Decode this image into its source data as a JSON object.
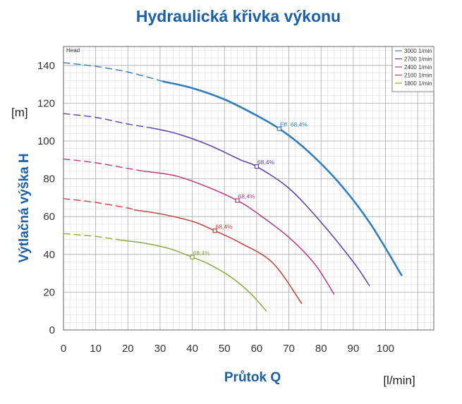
{
  "chart_data": {
    "type": "line",
    "title": "Hydraulická křivka výkonu",
    "xlabel": "Průtok Q",
    "xunit": "[l/min]",
    "ylabel": "Výtlačná výška H",
    "yunit": "[m]",
    "plot_label": "Head",
    "xlim": [
      0,
      115
    ],
    "ylim": [
      0,
      150
    ],
    "x_ticks": [
      0,
      10,
      20,
      30,
      40,
      50,
      60,
      70,
      80,
      90,
      100
    ],
    "y_ticks": [
      0,
      20,
      40,
      60,
      80,
      100,
      120,
      140
    ],
    "grid": true,
    "legend_position": "top-right",
    "series": [
      {
        "name": "3000 1/min",
        "color": "#2f7dc0",
        "dashed_points": [
          [
            0,
            141.5
          ],
          [
            10,
            139.5
          ],
          [
            20,
            136.5
          ],
          [
            31,
            131.5
          ]
        ],
        "solid_points": [
          [
            31,
            131.5
          ],
          [
            40,
            128
          ],
          [
            50,
            122
          ],
          [
            60,
            113.5
          ],
          [
            67,
            106.5
          ],
          [
            75,
            96
          ],
          [
            85,
            79
          ],
          [
            95,
            57
          ],
          [
            105,
            29
          ]
        ],
        "efficiency_point": [
          67,
          106.5
        ],
        "efficiency_label": "Eff. 68,4%"
      },
      {
        "name": "2700 1/min",
        "color": "#5b3ea8",
        "dashed_points": [
          [
            0,
            114.5
          ],
          [
            10,
            112.5
          ],
          [
            20,
            109
          ],
          [
            27,
            107
          ]
        ],
        "solid_points": [
          [
            27,
            107
          ],
          [
            35,
            104
          ],
          [
            45,
            98
          ],
          [
            55,
            90
          ],
          [
            60,
            86.5
          ],
          [
            70,
            75
          ],
          [
            80,
            57
          ],
          [
            90,
            36
          ],
          [
            95,
            23.5
          ]
        ],
        "efficiency_point": [
          60,
          86.5
        ],
        "efficiency_label": "68,4%"
      },
      {
        "name": "2400 1/min",
        "color": "#b63a7e",
        "dashed_points": [
          [
            0,
            90.5
          ],
          [
            10,
            88.5
          ],
          [
            20,
            85.5
          ],
          [
            25,
            84
          ]
        ],
        "solid_points": [
          [
            25,
            84
          ],
          [
            35,
            81.5
          ],
          [
            45,
            75.5
          ],
          [
            54,
            68.5
          ],
          [
            60,
            62
          ],
          [
            70,
            49
          ],
          [
            78,
            35
          ],
          [
            84,
            19
          ]
        ],
        "efficiency_point": [
          54,
          68.5
        ],
        "efficiency_label": "68,4%"
      },
      {
        "name": "2100 1/min",
        "color": "#c0413c",
        "dashed_points": [
          [
            0,
            69.5
          ],
          [
            10,
            67.5
          ],
          [
            20,
            64.5
          ],
          [
            22,
            63.5
          ]
        ],
        "solid_points": [
          [
            22,
            63.5
          ],
          [
            30,
            61.5
          ],
          [
            40,
            57.5
          ],
          [
            47,
            52.5
          ],
          [
            55,
            46
          ],
          [
            65,
            35.5
          ],
          [
            74,
            14
          ]
        ],
        "efficiency_point": [
          47,
          52.5
        ],
        "efficiency_label": "68,4%"
      },
      {
        "name": "1800 1/min",
        "color": "#8aaa3c",
        "dashed_points": [
          [
            0,
            51
          ],
          [
            10,
            49.5
          ],
          [
            18,
            47.5
          ]
        ],
        "solid_points": [
          [
            18,
            47.5
          ],
          [
            25,
            46
          ],
          [
            33,
            43
          ],
          [
            40,
            38.5
          ],
          [
            45,
            35
          ],
          [
            52,
            28
          ],
          [
            58,
            19.5
          ],
          [
            63,
            10
          ]
        ],
        "efficiency_point": [
          40,
          38.5
        ],
        "efficiency_label": "68,4%"
      }
    ]
  }
}
